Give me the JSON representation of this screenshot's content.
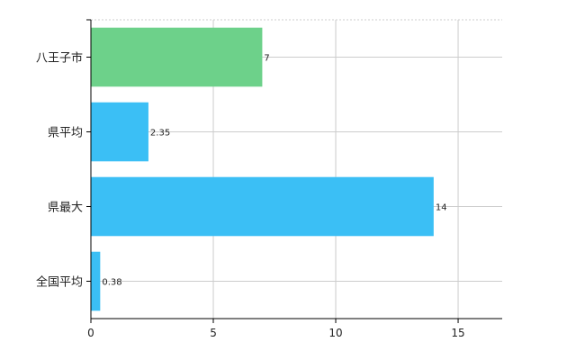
{
  "chart_data": {
    "type": "bar",
    "orientation": "horizontal",
    "categories": [
      "八王子市",
      "県平均",
      "県最大",
      "全国平均"
    ],
    "values": [
      7,
      2.35,
      14,
      0.38
    ],
    "value_labels": [
      "7",
      "2.35",
      "14",
      "0.38"
    ],
    "highlight_index": 0,
    "colors": {
      "highlight": "#6dd18a",
      "default": "#3bbff5"
    },
    "xlim": [
      0,
      16.8
    ],
    "xticks": [
      0,
      5,
      10,
      15
    ],
    "xtick_labels": [
      "0",
      "5",
      "10",
      "15"
    ],
    "grid": true,
    "title": "",
    "xlabel": "",
    "ylabel": ""
  }
}
